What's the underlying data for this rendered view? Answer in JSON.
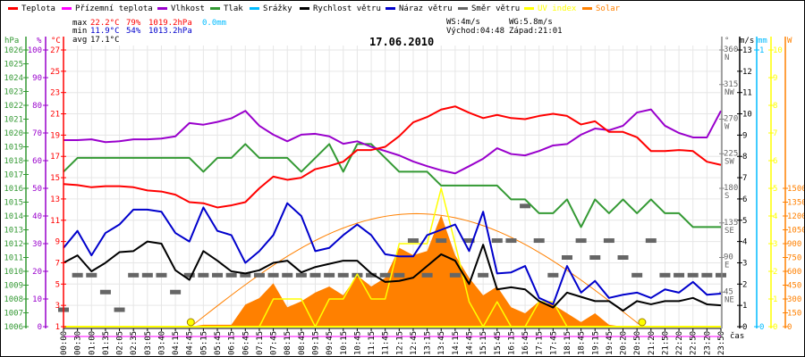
{
  "chart_data": {
    "type": "line",
    "title": "17.06.2010",
    "xlabel": "čas",
    "legend": {
      "placement": "top",
      "items": [
        {
          "label": "Teplota",
          "color": "#ff0000"
        },
        {
          "label": "Přízemní teplota",
          "color": "#ff00ff"
        },
        {
          "label": "Vlhkost",
          "color": "#9900cc"
        },
        {
          "label": "Tlak",
          "color": "#339933"
        },
        {
          "label": "Srážky",
          "color": "#00bbff"
        },
        {
          "label": "Rychlost větru",
          "color": "#000000"
        },
        {
          "label": "Náraz větru",
          "color": "#0000cc"
        },
        {
          "label": "Směr větru",
          "color": "#666666"
        },
        {
          "label": "UV index",
          "color": "#ffff00"
        },
        {
          "label": "Solar",
          "color": "#ff8000"
        }
      ]
    },
    "stats": {
      "max_label": "max",
      "min_label": "min",
      "avg_label": "avg",
      "max_temp": "22.2°C",
      "max_hum": "79%",
      "max_press": "1019.2hPa",
      "rain": "0.0mm",
      "min_temp": "11.9°C",
      "min_hum": "54%",
      "min_press": "1013.2hPa",
      "avg_temp": "17.1°C",
      "ws": "WS:4m/s",
      "wg": "WG:5.8m/s",
      "sunrise": "Východ:04:48",
      "sunset": "Západ:21:01"
    },
    "sun": {
      "sunrise": "04:48",
      "sunset": "21:01",
      "theoretical_peak_w": 1225
    },
    "x": [
      "00:00",
      "00:30",
      "01:00",
      "01:35",
      "02:05",
      "02:35",
      "03:05",
      "03:40",
      "04:15",
      "04:45",
      "05:15",
      "05:45",
      "06:15",
      "06:45",
      "07:15",
      "07:45",
      "08:15",
      "08:45",
      "09:15",
      "09:45",
      "10:15",
      "10:45",
      "11:15",
      "11:45",
      "12:15",
      "12:45",
      "13:15",
      "13:45",
      "14:15",
      "14:45",
      "15:15",
      "15:45",
      "16:15",
      "16:45",
      "17:15",
      "17:45",
      "18:15",
      "18:45",
      "19:15",
      "19:45",
      "20:20",
      "20:50",
      "21:20",
      "21:50",
      "22:20",
      "22:50",
      "23:20",
      "23:50"
    ],
    "series": [
      {
        "name": "Teplota",
        "unit": "°C",
        "values": [
          14.4,
          14.3,
          14.1,
          14.2,
          14.2,
          14.1,
          13.8,
          13.7,
          13.4,
          12.7,
          12.6,
          12.2,
          12.4,
          12.7,
          14.0,
          15.1,
          14.8,
          15.0,
          15.8,
          16.1,
          16.5,
          17.6,
          17.6,
          17.9,
          18.9,
          20.2,
          20.7,
          21.4,
          21.7,
          21.1,
          20.6,
          20.9,
          20.6,
          20.5,
          20.8,
          21.0,
          20.8,
          20.0,
          20.3,
          19.3,
          19.3,
          18.8,
          17.5,
          17.5,
          17.6,
          17.5,
          16.5,
          16.2
        ]
      },
      {
        "name": "Vlhkost",
        "unit": "%",
        "values": [
          67.4,
          67.4,
          67.7,
          66.7,
          67,
          67.7,
          67.7,
          68,
          68.8,
          73.6,
          73,
          74,
          75.3,
          78,
          72.6,
          69.4,
          67,
          69.4,
          69.7,
          68.8,
          66.1,
          67,
          65,
          63.5,
          61.9,
          59.7,
          58,
          56.5,
          55.4,
          58,
          60.7,
          64.5,
          62.4,
          61.9,
          63.5,
          65.5,
          66,
          69.4,
          71.6,
          71,
          72.6,
          77.4,
          78.5,
          72.6,
          70,
          68.4,
          68.4,
          78
        ]
      },
      {
        "name": "Tlak",
        "unit": "hPa",
        "values": [
          1017.2,
          1018.2,
          1018.2,
          1018.2,
          1018.2,
          1018.2,
          1018.2,
          1018.2,
          1018.2,
          1018.2,
          1017.2,
          1018.2,
          1018.2,
          1019.2,
          1018.2,
          1018.2,
          1018.2,
          1017.2,
          1018.2,
          1019.2,
          1017.2,
          1019.2,
          1019.2,
          1018.2,
          1017.2,
          1017.2,
          1017.2,
          1016.2,
          1016.2,
          1016.2,
          1016.2,
          1016.2,
          1015.2,
          1015.2,
          1014.2,
          1014.2,
          1015.2,
          1013.2,
          1015.2,
          1014.2,
          1015.2,
          1014.2,
          1015.2,
          1014.2,
          1014.2,
          1013.2,
          1013.2,
          1013.2
        ]
      },
      {
        "name": "Rychlost větru",
        "unit": "m/s",
        "values": [
          3.0,
          3.35,
          2.6,
          3.0,
          3.5,
          3.55,
          4.0,
          3.9,
          2.65,
          2.2,
          3.55,
          3.1,
          2.6,
          2.5,
          2.65,
          3.0,
          3.1,
          2.55,
          2.8,
          2.95,
          3.1,
          3.1,
          2.5,
          2.1,
          2.15,
          2.3,
          2.85,
          3.4,
          3.1,
          2.0,
          3.85,
          1.75,
          1.85,
          1.75,
          1.2,
          0.9,
          1.6,
          1.4,
          1.2,
          1.2,
          0.75,
          1.2,
          1.05,
          1.2,
          1.2,
          1.35,
          1.05,
          1.0
        ]
      },
      {
        "name": "Náraz větru",
        "unit": "m/s",
        "values": [
          3.7,
          4.5,
          3.35,
          4.4,
          4.8,
          5.5,
          5.5,
          5.4,
          4.4,
          4.0,
          5.6,
          4.5,
          4.3,
          3.0,
          3.55,
          4.3,
          5.8,
          5.2,
          3.55,
          3.7,
          4.3,
          4.8,
          4.3,
          3.4,
          3.3,
          3.3,
          4.3,
          4.55,
          4.8,
          3.55,
          5.4,
          2.5,
          2.55,
          2.85,
          1.35,
          1.05,
          2.85,
          1.6,
          2.15,
          1.35,
          1.5,
          1.6,
          1.35,
          1.75,
          1.6,
          2.1,
          1.5,
          1.55
        ]
      },
      {
        "name": "Směr větru",
        "unit": "°",
        "values": [
          22,
          67,
          67,
          45,
          22,
          67,
          67,
          67,
          45,
          67,
          67,
          67,
          67,
          67,
          67,
          67,
          67,
          67,
          67,
          67,
          67,
          67,
          67,
          67,
          67,
          112,
          67,
          112,
          67,
          112,
          67,
          112,
          112,
          157,
          112,
          67,
          90,
          112,
          90,
          112,
          90,
          67,
          112,
          67,
          67,
          67,
          67,
          67
        ]
      },
      {
        "name": "UV index",
        "unit": "",
        "values": [
          0,
          0,
          0,
          0,
          0,
          0,
          0,
          0,
          0,
          0,
          0,
          0,
          0,
          0,
          0,
          1.0,
          1.0,
          1.0,
          0,
          1.0,
          1.0,
          1.9,
          1.0,
          1.0,
          3.0,
          3.0,
          3.0,
          5.0,
          3.0,
          0.9,
          0,
          0.9,
          0,
          0,
          0.9,
          0.9,
          0,
          0,
          0,
          0,
          0,
          0,
          0,
          0,
          0,
          0,
          0,
          0
        ]
      },
      {
        "name": "Solar",
        "unit": "W",
        "values": [
          0,
          0,
          0,
          0,
          0,
          0,
          0,
          0,
          0,
          0,
          20,
          20,
          20,
          240,
          310,
          470,
          210,
          275,
          370,
          435,
          340,
          555,
          435,
          530,
          855,
          775,
          820,
          1210,
          775,
          530,
          340,
          435,
          210,
          145,
          275,
          240,
          145,
          50,
          145,
          20,
          0,
          0,
          0,
          0,
          0,
          0,
          0,
          0
        ]
      },
      {
        "name": "Srážky",
        "unit": "mm",
        "values": [
          0,
          0,
          0,
          0,
          0,
          0,
          0,
          0,
          0,
          0,
          0,
          0,
          0,
          0,
          0,
          0,
          0,
          0,
          0,
          0,
          0,
          0,
          0,
          0,
          0,
          0,
          0,
          0,
          0,
          0,
          0,
          0,
          0,
          0,
          0,
          0,
          0,
          0,
          0,
          0,
          0,
          0,
          0,
          0,
          0,
          0,
          0,
          0
        ]
      }
    ],
    "axes": {
      "pressure": {
        "unit": "hPa",
        "range": [
          1006,
          1026
        ],
        "ticks": [
          "1006",
          "1007",
          "1008",
          "1009",
          "1010",
          "1011",
          "1012",
          "1013",
          "1014",
          "1015",
          "1016",
          "1017",
          "1018",
          "1019",
          "1020",
          "1021",
          "1022",
          "1023",
          "1024",
          "1025",
          "1026"
        ]
      },
      "humidity": {
        "unit": "%",
        "range": [
          0,
          100
        ],
        "ticks": [
          "0",
          "10",
          "20",
          "30",
          "40",
          "50",
          "60",
          "70",
          "80",
          "90",
          "100"
        ]
      },
      "temperature": {
        "unit": "°C",
        "range": [
          1,
          27
        ],
        "ticks": [
          "1",
          "3",
          "5",
          "7",
          "9",
          "11",
          "13",
          "15",
          "17",
          "19",
          "21",
          "23",
          "25",
          "27"
        ]
      },
      "direction": {
        "unit": "°",
        "range": [
          0,
          360
        ],
        "ticks": [
          "45",
          "90",
          "135",
          "180",
          "225",
          "270",
          "315",
          "360"
        ],
        "compass": [
          "NE",
          "E",
          "SE",
          "S",
          "SW",
          "W",
          "NW",
          "N"
        ]
      },
      "wind": {
        "unit": "m/s",
        "range": [
          0,
          13
        ],
        "ticks": [
          "0",
          "1",
          "2",
          "3",
          "4",
          "5",
          "6",
          "7",
          "8",
          "9",
          "10",
          "11",
          "12",
          "13"
        ]
      },
      "rain": {
        "unit": "mm",
        "range": [
          0,
          1
        ],
        "ticks": [
          "0",
          "1"
        ]
      },
      "uv": {
        "unit": "",
        "range": [
          0,
          10
        ],
        "ticks": [
          "0",
          "1",
          "2",
          "3",
          "4",
          "5",
          "6",
          "7",
          "8",
          "9",
          "10"
        ]
      },
      "solar": {
        "unit": "W",
        "range": [
          0,
          1500
        ],
        "ticks": [
          "0",
          "150",
          "300",
          "450",
          "600",
          "750",
          "900",
          "1050",
          "1200",
          "1350",
          "1500"
        ]
      }
    },
    "grid": true
  }
}
